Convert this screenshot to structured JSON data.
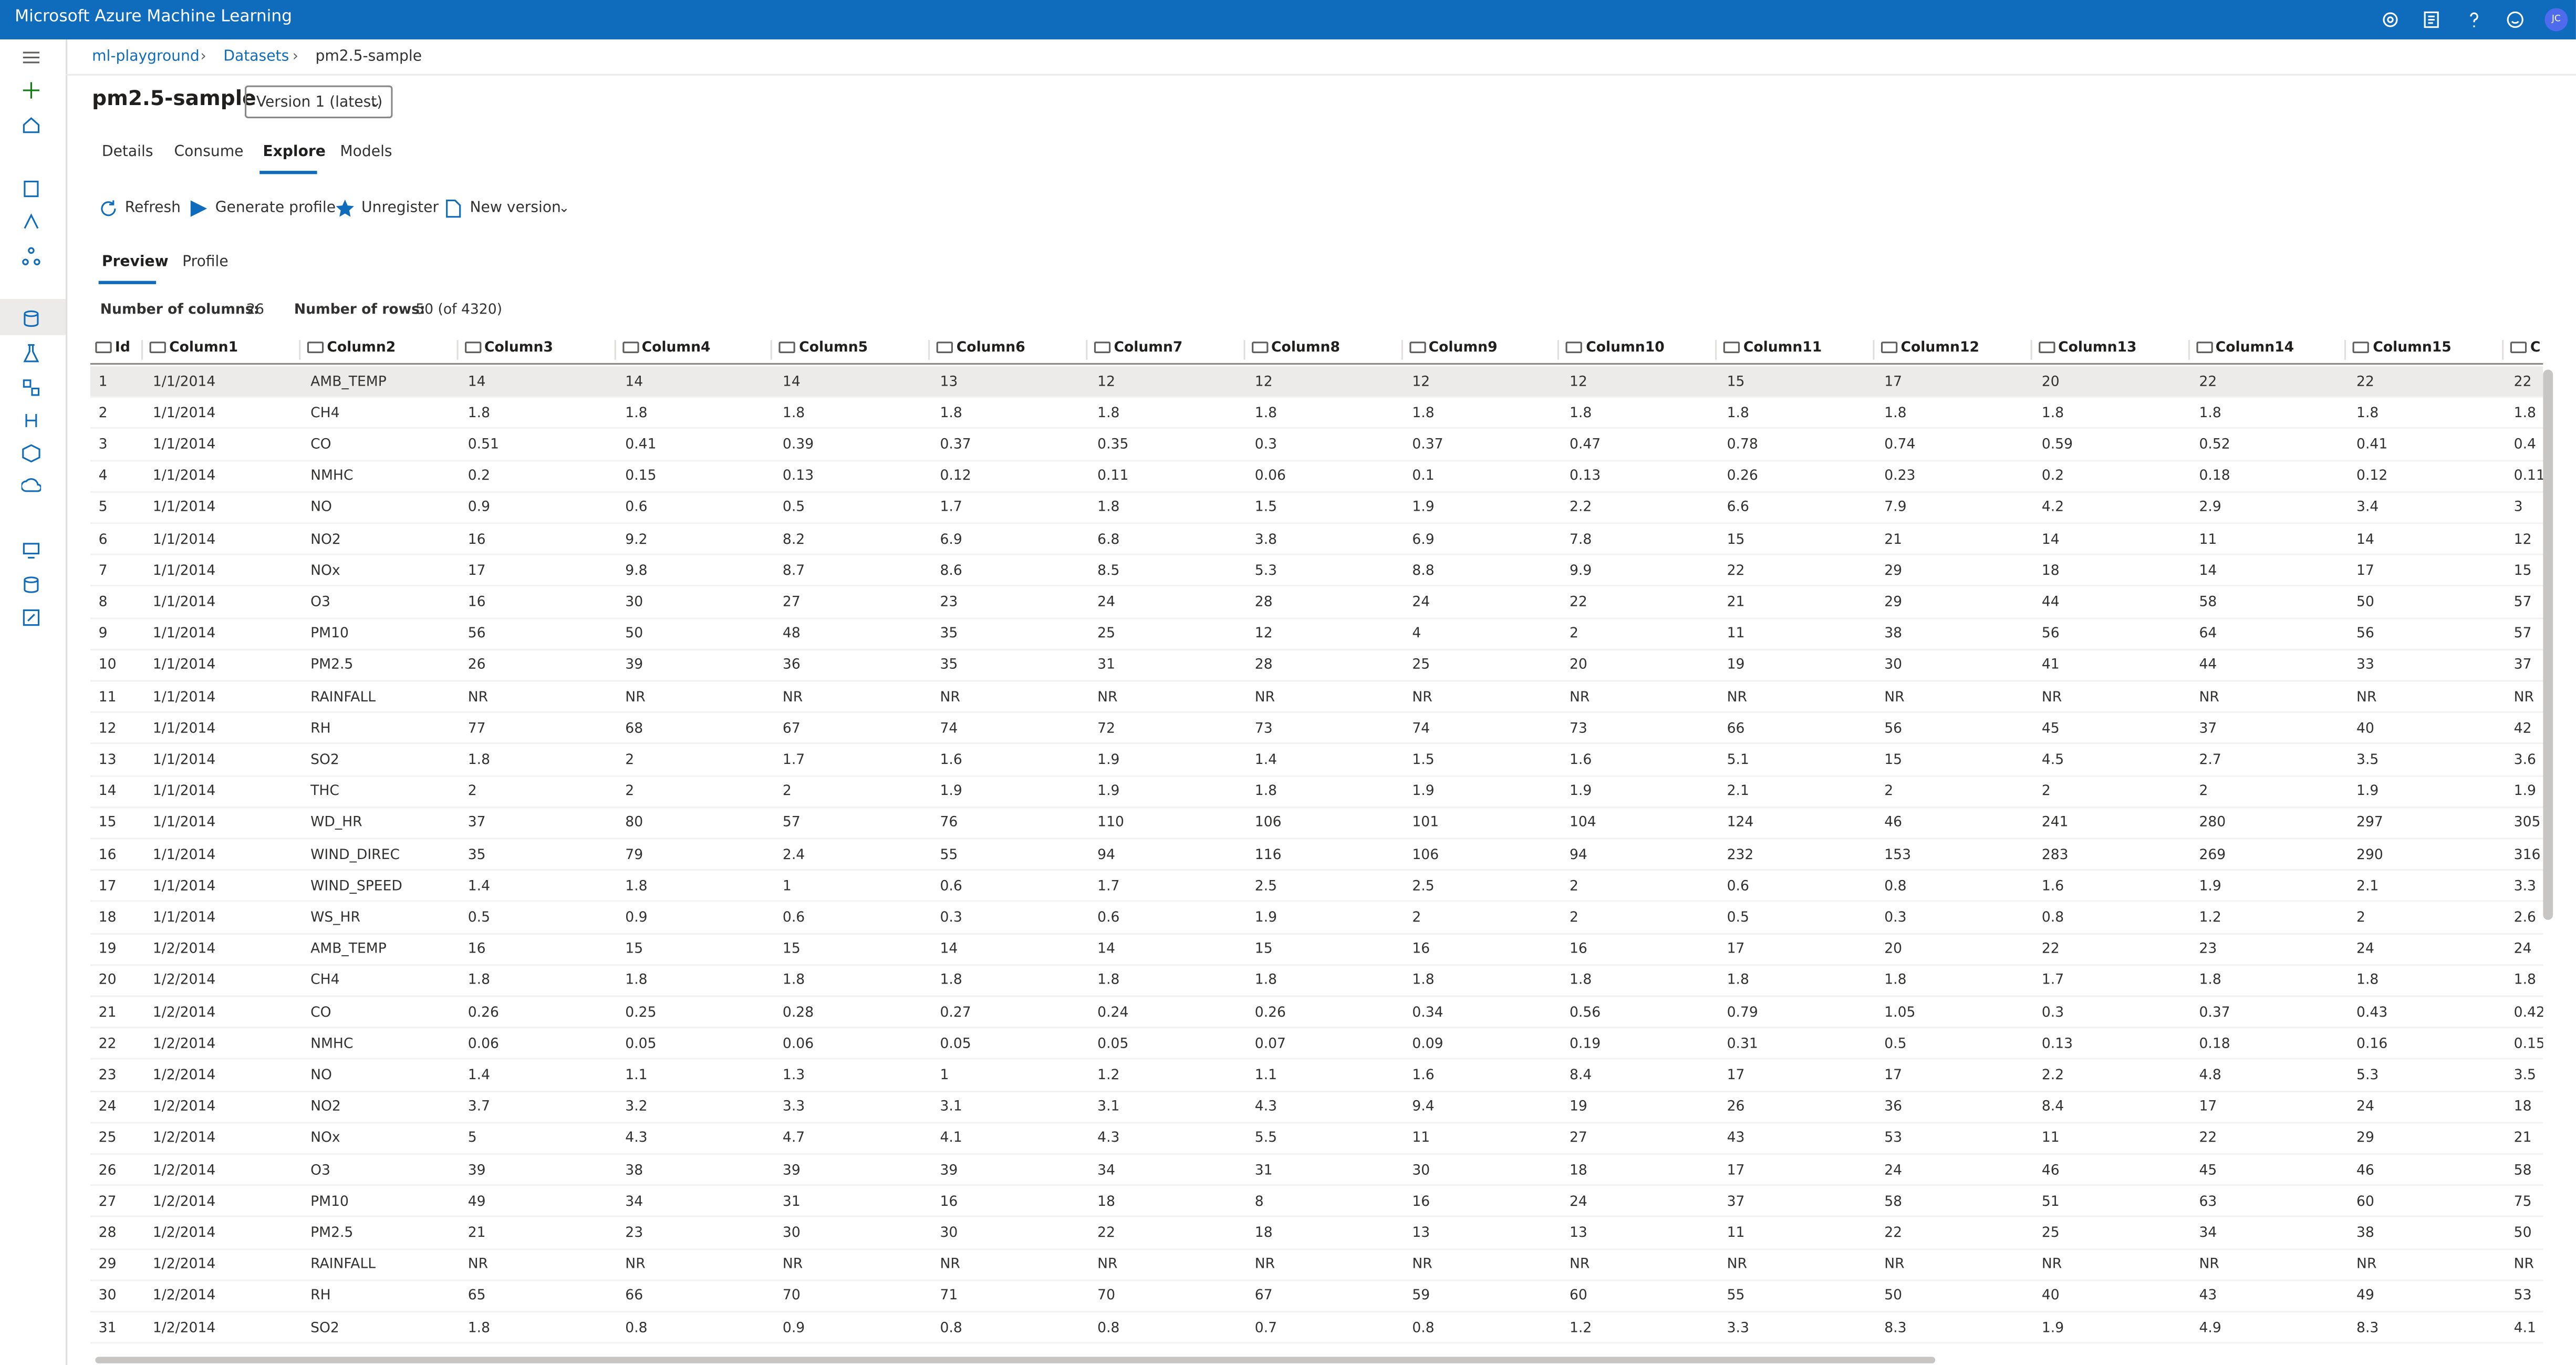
{
  "header": {
    "app_title": "Microsoft Azure Machine Learning",
    "avatar": "JC"
  },
  "breadcrumb": [
    "ml-playground",
    "Datasets",
    "pm2.5-sample"
  ],
  "title": "pm2.5-sample",
  "version": "Version 1 (latest)",
  "tabs": [
    "Details",
    "Consume",
    "Explore",
    "Models"
  ],
  "toolbar": [
    "Refresh",
    "Generate profile",
    "Unregister",
    "New version"
  ],
  "subtabs": [
    "Preview",
    "Profile"
  ],
  "stats": {
    "columns_label": "Number of columns:",
    "columns": "26",
    "rows_label": "Number of rows:",
    "rows": "50 (of 4320)"
  },
  "table": {
    "columns": [
      "Id",
      "Column1",
      "Column2",
      "Column3",
      "Column4",
      "Column5",
      "Column6",
      "Column7",
      "Column8",
      "Column9",
      "Column10",
      "Column11",
      "Column12",
      "Column13",
      "Column14",
      "Column15",
      "C"
    ],
    "rows": [
      [
        "1",
        "1/1/2014",
        "AMB_TEMP",
        "14",
        "14",
        "14",
        "13",
        "12",
        "12",
        "12",
        "12",
        "15",
        "17",
        "20",
        "22",
        "22",
        "22"
      ],
      [
        "2",
        "1/1/2014",
        "CH4",
        "1.8",
        "1.8",
        "1.8",
        "1.8",
        "1.8",
        "1.8",
        "1.8",
        "1.8",
        "1.8",
        "1.8",
        "1.8",
        "1.8",
        "1.8",
        "1.8"
      ],
      [
        "3",
        "1/1/2014",
        "CO",
        "0.51",
        "0.41",
        "0.39",
        "0.37",
        "0.35",
        "0.3",
        "0.37",
        "0.47",
        "0.78",
        "0.74",
        "0.59",
        "0.52",
        "0.41",
        "0.4"
      ],
      [
        "4",
        "1/1/2014",
        "NMHC",
        "0.2",
        "0.15",
        "0.13",
        "0.12",
        "0.11",
        "0.06",
        "0.1",
        "0.13",
        "0.26",
        "0.23",
        "0.2",
        "0.18",
        "0.12",
        "0.11"
      ],
      [
        "5",
        "1/1/2014",
        "NO",
        "0.9",
        "0.6",
        "0.5",
        "1.7",
        "1.8",
        "1.5",
        "1.9",
        "2.2",
        "6.6",
        "7.9",
        "4.2",
        "2.9",
        "3.4",
        "3"
      ],
      [
        "6",
        "1/1/2014",
        "NO2",
        "16",
        "9.2",
        "8.2",
        "6.9",
        "6.8",
        "3.8",
        "6.9",
        "7.8",
        "15",
        "21",
        "14",
        "11",
        "14",
        "12"
      ],
      [
        "7",
        "1/1/2014",
        "NOx",
        "17",
        "9.8",
        "8.7",
        "8.6",
        "8.5",
        "5.3",
        "8.8",
        "9.9",
        "22",
        "29",
        "18",
        "14",
        "17",
        "15"
      ],
      [
        "8",
        "1/1/2014",
        "O3",
        "16",
        "30",
        "27",
        "23",
        "24",
        "28",
        "24",
        "22",
        "21",
        "29",
        "44",
        "58",
        "50",
        "57"
      ],
      [
        "9",
        "1/1/2014",
        "PM10",
        "56",
        "50",
        "48",
        "35",
        "25",
        "12",
        "4",
        "2",
        "11",
        "38",
        "56",
        "64",
        "56",
        "57"
      ],
      [
        "10",
        "1/1/2014",
        "PM2.5",
        "26",
        "39",
        "36",
        "35",
        "31",
        "28",
        "25",
        "20",
        "19",
        "30",
        "41",
        "44",
        "33",
        "37"
      ],
      [
        "11",
        "1/1/2014",
        "RAINFALL",
        "NR",
        "NR",
        "NR",
        "NR",
        "NR",
        "NR",
        "NR",
        "NR",
        "NR",
        "NR",
        "NR",
        "NR",
        "NR",
        "NR"
      ],
      [
        "12",
        "1/1/2014",
        "RH",
        "77",
        "68",
        "67",
        "74",
        "72",
        "73",
        "74",
        "73",
        "66",
        "56",
        "45",
        "37",
        "40",
        "42"
      ],
      [
        "13",
        "1/1/2014",
        "SO2",
        "1.8",
        "2",
        "1.7",
        "1.6",
        "1.9",
        "1.4",
        "1.5",
        "1.6",
        "5.1",
        "15",
        "4.5",
        "2.7",
        "3.5",
        "3.6"
      ],
      [
        "14",
        "1/1/2014",
        "THC",
        "2",
        "2",
        "2",
        "1.9",
        "1.9",
        "1.8",
        "1.9",
        "1.9",
        "2.1",
        "2",
        "2",
        "2",
        "1.9",
        "1.9"
      ],
      [
        "15",
        "1/1/2014",
        "WD_HR",
        "37",
        "80",
        "57",
        "76",
        "110",
        "106",
        "101",
        "104",
        "124",
        "46",
        "241",
        "280",
        "297",
        "305"
      ],
      [
        "16",
        "1/1/2014",
        "WIND_DIREC",
        "35",
        "79",
        "2.4",
        "55",
        "94",
        "116",
        "106",
        "94",
        "232",
        "153",
        "283",
        "269",
        "290",
        "316"
      ],
      [
        "17",
        "1/1/2014",
        "WIND_SPEED",
        "1.4",
        "1.8",
        "1",
        "0.6",
        "1.7",
        "2.5",
        "2.5",
        "2",
        "0.6",
        "0.8",
        "1.6",
        "1.9",
        "2.1",
        "3.3"
      ],
      [
        "18",
        "1/1/2014",
        "WS_HR",
        "0.5",
        "0.9",
        "0.6",
        "0.3",
        "0.6",
        "1.9",
        "2",
        "2",
        "0.5",
        "0.3",
        "0.8",
        "1.2",
        "2",
        "2.6"
      ],
      [
        "19",
        "1/2/2014",
        "AMB_TEMP",
        "16",
        "15",
        "15",
        "14",
        "14",
        "15",
        "16",
        "16",
        "17",
        "20",
        "22",
        "23",
        "24",
        "24"
      ],
      [
        "20",
        "1/2/2014",
        "CH4",
        "1.8",
        "1.8",
        "1.8",
        "1.8",
        "1.8",
        "1.8",
        "1.8",
        "1.8",
        "1.8",
        "1.8",
        "1.7",
        "1.8",
        "1.8",
        "1.8"
      ],
      [
        "21",
        "1/2/2014",
        "CO",
        "0.26",
        "0.25",
        "0.28",
        "0.27",
        "0.24",
        "0.26",
        "0.34",
        "0.56",
        "0.79",
        "1.05",
        "0.3",
        "0.37",
        "0.43",
        "0.42"
      ],
      [
        "22",
        "1/2/2014",
        "NMHC",
        "0.06",
        "0.05",
        "0.06",
        "0.05",
        "0.05",
        "0.07",
        "0.09",
        "0.19",
        "0.31",
        "0.5",
        "0.13",
        "0.18",
        "0.16",
        "0.15"
      ],
      [
        "23",
        "1/2/2014",
        "NO",
        "1.4",
        "1.1",
        "1.3",
        "1",
        "1.2",
        "1.1",
        "1.6",
        "8.4",
        "17",
        "17",
        "2.2",
        "4.8",
        "5.3",
        "3.5"
      ],
      [
        "24",
        "1/2/2014",
        "NO2",
        "3.7",
        "3.2",
        "3.3",
        "3.1",
        "3.1",
        "4.3",
        "9.4",
        "19",
        "26",
        "36",
        "8.4",
        "17",
        "24",
        "18"
      ],
      [
        "25",
        "1/2/2014",
        "NOx",
        "5",
        "4.3",
        "4.7",
        "4.1",
        "4.3",
        "5.5",
        "11",
        "27",
        "43",
        "53",
        "11",
        "22",
        "29",
        "21"
      ],
      [
        "26",
        "1/2/2014",
        "O3",
        "39",
        "38",
        "39",
        "39",
        "34",
        "31",
        "30",
        "18",
        "17",
        "24",
        "46",
        "45",
        "46",
        "58"
      ],
      [
        "27",
        "1/2/2014",
        "PM10",
        "49",
        "34",
        "31",
        "16",
        "18",
        "8",
        "16",
        "24",
        "37",
        "58",
        "51",
        "63",
        "60",
        "75"
      ],
      [
        "28",
        "1/2/2014",
        "PM2.5",
        "21",
        "23",
        "30",
        "30",
        "22",
        "18",
        "13",
        "13",
        "11",
        "22",
        "25",
        "34",
        "38",
        "50"
      ],
      [
        "29",
        "1/2/2014",
        "RAINFALL",
        "NR",
        "NR",
        "NR",
        "NR",
        "NR",
        "NR",
        "NR",
        "NR",
        "NR",
        "NR",
        "NR",
        "NR",
        "NR",
        "NR"
      ],
      [
        "30",
        "1/2/2014",
        "RH",
        "65",
        "66",
        "70",
        "71",
        "70",
        "67",
        "59",
        "60",
        "55",
        "50",
        "40",
        "43",
        "49",
        "53"
      ],
      [
        "31",
        "1/2/2014",
        "SO2",
        "1.8",
        "0.8",
        "0.9",
        "0.8",
        "0.8",
        "0.7",
        "0.8",
        "1.2",
        "3.3",
        "8.3",
        "1.9",
        "4.9",
        "8.3",
        "4.1"
      ]
    ]
  }
}
